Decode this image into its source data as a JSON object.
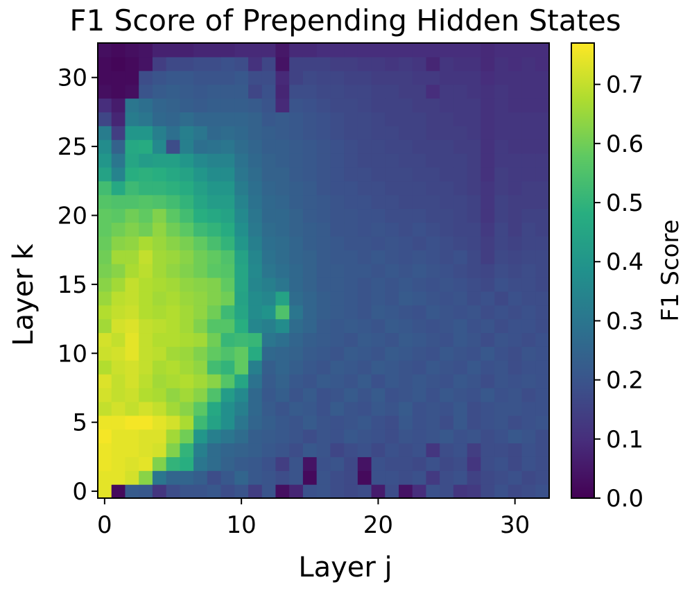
{
  "chart_data": {
    "type": "heatmap",
    "title": "F1 Score of Prepending Hidden States",
    "xlabel": "Layer j",
    "ylabel": "Layer k",
    "colorbar_label": "F1 Score",
    "colormap": "viridis",
    "vmin": 0.0,
    "vmax": 0.77,
    "x_layers": [
      0,
      32
    ],
    "y_layers": [
      0,
      32
    ],
    "x_ticks": [
      0,
      10,
      20,
      30
    ],
    "y_ticks": [
      0,
      5,
      10,
      15,
      20,
      25,
      30
    ],
    "colorbar_ticks": [
      0.0,
      0.1,
      0.2,
      0.3,
      0.4,
      0.5,
      0.6,
      0.7
    ],
    "x_tick_labels": [
      "0",
      "10",
      "20",
      "30"
    ],
    "y_tick_labels": [
      "0",
      "5",
      "10",
      "15",
      "20",
      "25",
      "30"
    ],
    "colorbar_tick_labels": [
      "0.0",
      "0.1",
      "0.2",
      "0.3",
      "0.4",
      "0.5",
      "0.6",
      "0.7"
    ],
    "f1_rows_k_low_to_high": [
      [
        0.74,
        0.02,
        0.22,
        0.21,
        0.12,
        0.18,
        0.2,
        0.2,
        0.21,
        0.18,
        0.2,
        0.14,
        0.2,
        0.03,
        0.08,
        0.19,
        0.2,
        0.18,
        0.17,
        0.18,
        0.06,
        0.18,
        0.04,
        0.1,
        0.19,
        0.18,
        0.12,
        0.13,
        0.17,
        0.19,
        0.17,
        0.18,
        0.19
      ],
      [
        0.74,
        0.74,
        0.72,
        0.63,
        0.3,
        0.25,
        0.25,
        0.23,
        0.18,
        0.21,
        0.25,
        0.21,
        0.2,
        0.18,
        0.2,
        0.02,
        0.2,
        0.18,
        0.17,
        0.02,
        0.19,
        0.19,
        0.18,
        0.19,
        0.13,
        0.18,
        0.19,
        0.15,
        0.17,
        0.18,
        0.19,
        0.17,
        0.18
      ],
      [
        0.75,
        0.74,
        0.73,
        0.74,
        0.62,
        0.5,
        0.48,
        0.3,
        0.27,
        0.24,
        0.22,
        0.21,
        0.19,
        0.14,
        0.2,
        0.04,
        0.19,
        0.2,
        0.17,
        0.04,
        0.19,
        0.18,
        0.18,
        0.17,
        0.19,
        0.17,
        0.18,
        0.12,
        0.18,
        0.19,
        0.17,
        0.19,
        0.18
      ],
      [
        0.75,
        0.74,
        0.74,
        0.73,
        0.72,
        0.62,
        0.5,
        0.33,
        0.27,
        0.25,
        0.24,
        0.23,
        0.21,
        0.2,
        0.18,
        0.21,
        0.2,
        0.16,
        0.18,
        0.19,
        0.17,
        0.19,
        0.18,
        0.19,
        0.12,
        0.18,
        0.19,
        0.14,
        0.18,
        0.18,
        0.17,
        0.19,
        0.18
      ],
      [
        0.76,
        0.74,
        0.74,
        0.73,
        0.73,
        0.66,
        0.6,
        0.4,
        0.33,
        0.3,
        0.27,
        0.23,
        0.22,
        0.21,
        0.2,
        0.18,
        0.2,
        0.19,
        0.21,
        0.2,
        0.19,
        0.18,
        0.2,
        0.19,
        0.2,
        0.21,
        0.19,
        0.2,
        0.18,
        0.19,
        0.21,
        0.2,
        0.18
      ],
      [
        0.75,
        0.75,
        0.76,
        0.76,
        0.74,
        0.72,
        0.67,
        0.52,
        0.44,
        0.38,
        0.3,
        0.25,
        0.23,
        0.21,
        0.2,
        0.22,
        0.2,
        0.19,
        0.2,
        0.21,
        0.19,
        0.18,
        0.21,
        0.19,
        0.2,
        0.18,
        0.21,
        0.18,
        0.19,
        0.2,
        0.18,
        0.19,
        0.2
      ],
      [
        0.7,
        0.72,
        0.7,
        0.72,
        0.7,
        0.66,
        0.63,
        0.57,
        0.46,
        0.38,
        0.33,
        0.26,
        0.22,
        0.2,
        0.22,
        0.21,
        0.19,
        0.22,
        0.2,
        0.19,
        0.21,
        0.2,
        0.22,
        0.19,
        0.2,
        0.19,
        0.21,
        0.18,
        0.19,
        0.2,
        0.2,
        0.19,
        0.19
      ],
      [
        0.72,
        0.7,
        0.71,
        0.68,
        0.67,
        0.64,
        0.66,
        0.63,
        0.55,
        0.42,
        0.36,
        0.26,
        0.21,
        0.23,
        0.2,
        0.22,
        0.19,
        0.2,
        0.22,
        0.2,
        0.22,
        0.19,
        0.2,
        0.21,
        0.19,
        0.21,
        0.2,
        0.19,
        0.21,
        0.19,
        0.2,
        0.18,
        0.19
      ],
      [
        0.73,
        0.7,
        0.72,
        0.69,
        0.66,
        0.67,
        0.68,
        0.66,
        0.63,
        0.56,
        0.45,
        0.29,
        0.22,
        0.24,
        0.21,
        0.2,
        0.22,
        0.21,
        0.2,
        0.22,
        0.19,
        0.21,
        0.2,
        0.21,
        0.2,
        0.19,
        0.21,
        0.2,
        0.18,
        0.2,
        0.19,
        0.2,
        0.19
      ],
      [
        0.68,
        0.71,
        0.72,
        0.7,
        0.67,
        0.68,
        0.66,
        0.64,
        0.53,
        0.5,
        0.58,
        0.33,
        0.23,
        0.25,
        0.23,
        0.21,
        0.2,
        0.22,
        0.21,
        0.2,
        0.22,
        0.21,
        0.2,
        0.19,
        0.21,
        0.2,
        0.19,
        0.21,
        0.19,
        0.2,
        0.18,
        0.19,
        0.19
      ],
      [
        0.71,
        0.72,
        0.74,
        0.7,
        0.69,
        0.66,
        0.65,
        0.62,
        0.58,
        0.55,
        0.58,
        0.47,
        0.26,
        0.25,
        0.24,
        0.22,
        0.21,
        0.2,
        0.22,
        0.21,
        0.2,
        0.22,
        0.21,
        0.2,
        0.19,
        0.21,
        0.2,
        0.19,
        0.21,
        0.19,
        0.18,
        0.2,
        0.19
      ],
      [
        0.72,
        0.7,
        0.74,
        0.7,
        0.68,
        0.68,
        0.67,
        0.66,
        0.6,
        0.51,
        0.52,
        0.51,
        0.3,
        0.28,
        0.25,
        0.23,
        0.22,
        0.21,
        0.2,
        0.22,
        0.21,
        0.2,
        0.22,
        0.21,
        0.2,
        0.19,
        0.21,
        0.2,
        0.18,
        0.2,
        0.19,
        0.18,
        0.19
      ],
      [
        0.66,
        0.72,
        0.73,
        0.7,
        0.69,
        0.68,
        0.66,
        0.62,
        0.56,
        0.56,
        0.48,
        0.35,
        0.33,
        0.37,
        0.27,
        0.25,
        0.22,
        0.21,
        0.22,
        0.21,
        0.2,
        0.22,
        0.21,
        0.2,
        0.19,
        0.2,
        0.21,
        0.19,
        0.2,
        0.18,
        0.19,
        0.19,
        0.18
      ],
      [
        0.68,
        0.7,
        0.71,
        0.68,
        0.67,
        0.68,
        0.66,
        0.64,
        0.6,
        0.52,
        0.45,
        0.37,
        0.39,
        0.55,
        0.3,
        0.25,
        0.23,
        0.22,
        0.21,
        0.2,
        0.22,
        0.21,
        0.2,
        0.19,
        0.21,
        0.2,
        0.19,
        0.2,
        0.18,
        0.19,
        0.18,
        0.19,
        0.18
      ],
      [
        0.65,
        0.69,
        0.7,
        0.68,
        0.66,
        0.67,
        0.65,
        0.64,
        0.62,
        0.6,
        0.44,
        0.37,
        0.35,
        0.44,
        0.27,
        0.25,
        0.23,
        0.22,
        0.21,
        0.2,
        0.21,
        0.2,
        0.22,
        0.21,
        0.2,
        0.19,
        0.2,
        0.18,
        0.19,
        0.17,
        0.19,
        0.18,
        0.18
      ],
      [
        0.63,
        0.66,
        0.7,
        0.68,
        0.67,
        0.66,
        0.64,
        0.63,
        0.62,
        0.58,
        0.45,
        0.35,
        0.33,
        0.3,
        0.26,
        0.24,
        0.22,
        0.22,
        0.21,
        0.2,
        0.21,
        0.2,
        0.21,
        0.2,
        0.19,
        0.2,
        0.19,
        0.18,
        0.17,
        0.19,
        0.18,
        0.18,
        0.17
      ],
      [
        0.61,
        0.63,
        0.67,
        0.69,
        0.66,
        0.64,
        0.62,
        0.6,
        0.57,
        0.56,
        0.45,
        0.36,
        0.3,
        0.28,
        0.26,
        0.24,
        0.22,
        0.22,
        0.21,
        0.21,
        0.2,
        0.21,
        0.2,
        0.21,
        0.2,
        0.19,
        0.18,
        0.17,
        0.16,
        0.18,
        0.17,
        0.18,
        0.17
      ],
      [
        0.6,
        0.66,
        0.66,
        0.7,
        0.66,
        0.65,
        0.63,
        0.6,
        0.58,
        0.55,
        0.44,
        0.35,
        0.29,
        0.27,
        0.25,
        0.24,
        0.22,
        0.21,
        0.21,
        0.2,
        0.21,
        0.2,
        0.19,
        0.2,
        0.19,
        0.18,
        0.19,
        0.17,
        0.14,
        0.17,
        0.16,
        0.17,
        0.17
      ],
      [
        0.59,
        0.63,
        0.64,
        0.67,
        0.65,
        0.63,
        0.61,
        0.58,
        0.54,
        0.5,
        0.4,
        0.33,
        0.28,
        0.27,
        0.25,
        0.23,
        0.22,
        0.21,
        0.2,
        0.2,
        0.19,
        0.2,
        0.19,
        0.18,
        0.19,
        0.18,
        0.17,
        0.16,
        0.14,
        0.16,
        0.15,
        0.16,
        0.16
      ],
      [
        0.58,
        0.6,
        0.62,
        0.6,
        0.64,
        0.6,
        0.57,
        0.52,
        0.5,
        0.47,
        0.38,
        0.31,
        0.27,
        0.26,
        0.24,
        0.23,
        0.22,
        0.2,
        0.2,
        0.19,
        0.2,
        0.19,
        0.18,
        0.19,
        0.18,
        0.17,
        0.16,
        0.16,
        0.13,
        0.16,
        0.14,
        0.16,
        0.15
      ],
      [
        0.58,
        0.57,
        0.6,
        0.58,
        0.62,
        0.57,
        0.53,
        0.48,
        0.46,
        0.44,
        0.36,
        0.3,
        0.26,
        0.26,
        0.24,
        0.22,
        0.21,
        0.2,
        0.2,
        0.19,
        0.19,
        0.18,
        0.18,
        0.18,
        0.17,
        0.17,
        0.16,
        0.15,
        0.12,
        0.15,
        0.14,
        0.15,
        0.15
      ],
      [
        0.56,
        0.55,
        0.55,
        0.56,
        0.55,
        0.53,
        0.5,
        0.45,
        0.42,
        0.42,
        0.34,
        0.29,
        0.26,
        0.25,
        0.23,
        0.22,
        0.21,
        0.2,
        0.19,
        0.19,
        0.18,
        0.18,
        0.17,
        0.17,
        0.17,
        0.16,
        0.16,
        0.15,
        0.12,
        0.15,
        0.14,
        0.14,
        0.14
      ],
      [
        0.53,
        0.46,
        0.52,
        0.5,
        0.5,
        0.49,
        0.47,
        0.43,
        0.4,
        0.4,
        0.32,
        0.28,
        0.25,
        0.24,
        0.23,
        0.22,
        0.2,
        0.19,
        0.19,
        0.18,
        0.18,
        0.17,
        0.17,
        0.17,
        0.16,
        0.16,
        0.15,
        0.14,
        0.12,
        0.14,
        0.13,
        0.14,
        0.14
      ],
      [
        0.44,
        0.34,
        0.48,
        0.49,
        0.48,
        0.46,
        0.44,
        0.4,
        0.37,
        0.37,
        0.3,
        0.27,
        0.24,
        0.24,
        0.22,
        0.21,
        0.2,
        0.19,
        0.18,
        0.18,
        0.17,
        0.17,
        0.17,
        0.16,
        0.16,
        0.15,
        0.15,
        0.14,
        0.11,
        0.14,
        0.13,
        0.13,
        0.13
      ],
      [
        0.4,
        0.3,
        0.45,
        0.42,
        0.43,
        0.43,
        0.4,
        0.36,
        0.34,
        0.34,
        0.29,
        0.26,
        0.24,
        0.23,
        0.22,
        0.21,
        0.2,
        0.19,
        0.18,
        0.17,
        0.17,
        0.17,
        0.16,
        0.16,
        0.15,
        0.15,
        0.15,
        0.14,
        0.11,
        0.13,
        0.13,
        0.13,
        0.13
      ],
      [
        0.37,
        0.24,
        0.46,
        0.47,
        0.36,
        0.18,
        0.33,
        0.28,
        0.29,
        0.3,
        0.27,
        0.25,
        0.23,
        0.23,
        0.22,
        0.21,
        0.2,
        0.19,
        0.18,
        0.17,
        0.17,
        0.16,
        0.16,
        0.15,
        0.15,
        0.15,
        0.14,
        0.14,
        0.11,
        0.13,
        0.12,
        0.12,
        0.12
      ],
      [
        0.32,
        0.14,
        0.4,
        0.4,
        0.33,
        0.28,
        0.33,
        0.3,
        0.26,
        0.27,
        0.26,
        0.24,
        0.23,
        0.22,
        0.21,
        0.2,
        0.19,
        0.18,
        0.17,
        0.17,
        0.16,
        0.16,
        0.15,
        0.15,
        0.14,
        0.14,
        0.14,
        0.13,
        0.11,
        0.12,
        0.12,
        0.12,
        0.12
      ],
      [
        0.16,
        0.08,
        0.32,
        0.3,
        0.26,
        0.25,
        0.27,
        0.25,
        0.25,
        0.25,
        0.25,
        0.24,
        0.21,
        0.22,
        0.21,
        0.2,
        0.19,
        0.18,
        0.17,
        0.17,
        0.16,
        0.15,
        0.15,
        0.15,
        0.14,
        0.14,
        0.13,
        0.13,
        0.11,
        0.12,
        0.12,
        0.12,
        0.12
      ],
      [
        0.1,
        0.06,
        0.3,
        0.28,
        0.25,
        0.24,
        0.23,
        0.22,
        0.23,
        0.23,
        0.23,
        0.22,
        0.2,
        0.09,
        0.2,
        0.19,
        0.18,
        0.17,
        0.17,
        0.16,
        0.15,
        0.15,
        0.15,
        0.14,
        0.14,
        0.13,
        0.13,
        0.13,
        0.11,
        0.12,
        0.11,
        0.11,
        0.11
      ],
      [
        0.03,
        0.02,
        0.03,
        0.2,
        0.22,
        0.23,
        0.22,
        0.21,
        0.22,
        0.22,
        0.22,
        0.16,
        0.19,
        0.08,
        0.18,
        0.18,
        0.17,
        0.17,
        0.16,
        0.16,
        0.15,
        0.15,
        0.14,
        0.14,
        0.1,
        0.13,
        0.13,
        0.12,
        0.11,
        0.12,
        0.11,
        0.11,
        0.11
      ],
      [
        0.02,
        0.02,
        0.02,
        0.18,
        0.2,
        0.21,
        0.21,
        0.2,
        0.2,
        0.2,
        0.21,
        0.18,
        0.18,
        0.09,
        0.15,
        0.17,
        0.16,
        0.16,
        0.15,
        0.15,
        0.14,
        0.14,
        0.14,
        0.13,
        0.13,
        0.12,
        0.12,
        0.12,
        0.1,
        0.11,
        0.11,
        0.11,
        0.11
      ],
      [
        0.02,
        0.01,
        0.02,
        0.04,
        0.14,
        0.17,
        0.17,
        0.18,
        0.18,
        0.19,
        0.18,
        0.11,
        0.16,
        0.04,
        0.15,
        0.15,
        0.15,
        0.14,
        0.14,
        0.13,
        0.13,
        0.12,
        0.13,
        0.12,
        0.08,
        0.12,
        0.11,
        0.11,
        0.09,
        0.11,
        0.1,
        0.11,
        0.1
      ],
      [
        0.03,
        0.02,
        0.03,
        0.04,
        0.07,
        0.07,
        0.07,
        0.08,
        0.08,
        0.08,
        0.09,
        0.09,
        0.09,
        0.05,
        0.09,
        0.09,
        0.1,
        0.1,
        0.1,
        0.1,
        0.1,
        0.1,
        0.1,
        0.1,
        0.1,
        0.1,
        0.1,
        0.1,
        0.09,
        0.1,
        0.1,
        0.1,
        0.1
      ]
    ]
  }
}
